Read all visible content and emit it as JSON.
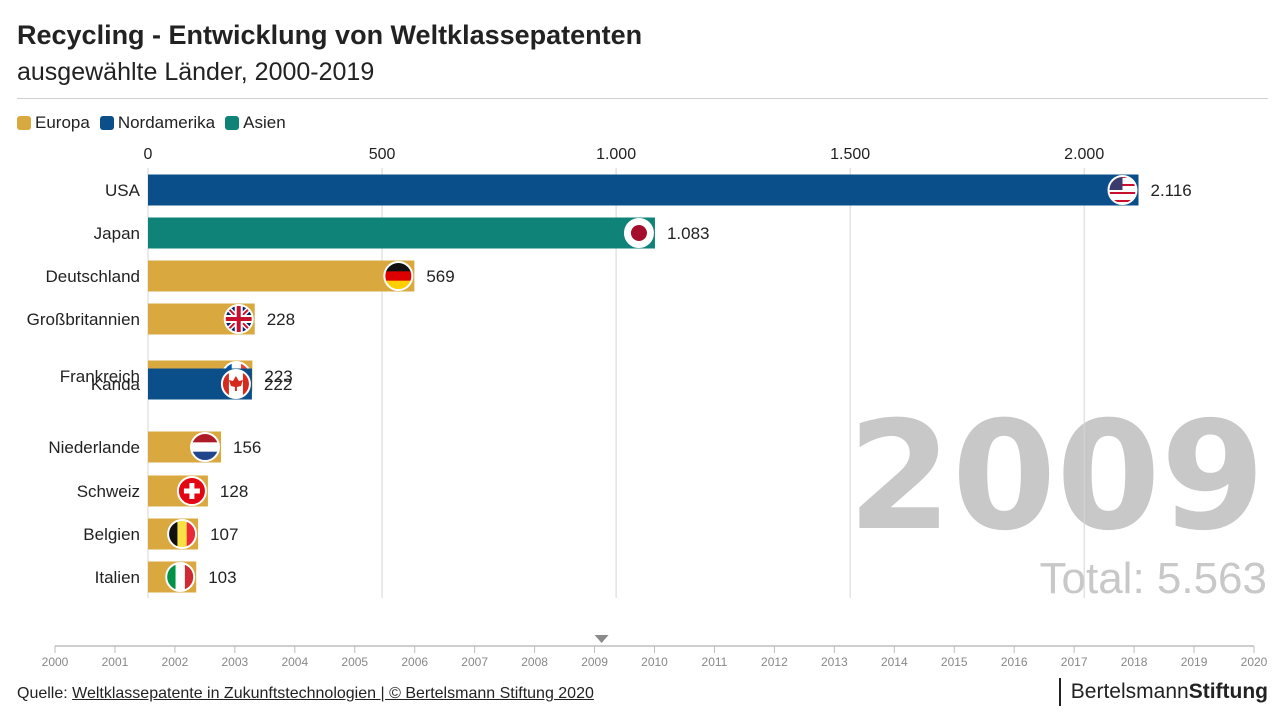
{
  "header": {
    "title": "Recycling - Entwicklung von Weltklassepatenten",
    "subtitle": "ausgewählte Länder, 2000-2019"
  },
  "legend": [
    {
      "label": "Europa",
      "color": "#d9a940"
    },
    {
      "label": "Nordamerika",
      "color": "#0a4f8a"
    },
    {
      "label": "Asien",
      "color": "#0f8378"
    }
  ],
  "colors": {
    "Europa": "#d9a940",
    "Nordamerika": "#0a4f8a",
    "Asien": "#0f8378",
    "big_year": "#c8c8c8",
    "grid": "#d6d6d6"
  },
  "chart_data": {
    "type": "bar",
    "orientation": "horizontal",
    "year": "2009",
    "total_label": "Total: 5.563",
    "xlim": [
      0,
      2100
    ],
    "xticks": [
      {
        "value": 0,
        "label": "0"
      },
      {
        "value": 500,
        "label": "500"
      },
      {
        "value": 1000,
        "label": "1.000"
      },
      {
        "value": 1500,
        "label": "1.500"
      },
      {
        "value": 2000,
        "label": "2.000"
      }
    ],
    "bars": [
      {
        "label": "USA",
        "value": 2116,
        "value_label": "2.116",
        "region": "Nordamerika",
        "flag": "us-flag-icon"
      },
      {
        "label": "Japan",
        "value": 1083,
        "value_label": "1.083",
        "region": "Asien",
        "flag": "jp-flag-icon"
      },
      {
        "label": "Deutschland",
        "value": 569,
        "value_label": "569",
        "region": "Europa",
        "flag": "de-flag-icon"
      },
      {
        "label": "Großbritannien",
        "value": 228,
        "value_label": "228",
        "region": "Europa",
        "flag": "gb-flag-icon"
      },
      {
        "label": "Frankreich",
        "value": 223,
        "value_label": "223",
        "region": "Europa",
        "flag": "fr-flag-icon"
      },
      {
        "label": "Kanda",
        "value": 222,
        "value_label": "222",
        "region": "Nordamerika",
        "flag": "ca-flag-icon"
      },
      {
        "label": "Niederlande",
        "value": 156,
        "value_label": "156",
        "region": "Europa",
        "flag": "nl-flag-icon"
      },
      {
        "label": "Schweiz",
        "value": 128,
        "value_label": "128",
        "region": "Europa",
        "flag": "ch-flag-icon"
      },
      {
        "label": "Belgien",
        "value": 107,
        "value_label": "107",
        "region": "Europa",
        "flag": "be-flag-icon"
      },
      {
        "label": "Italien",
        "value": 103,
        "value_label": "103",
        "region": "Europa",
        "flag": "it-flag-icon"
      }
    ],
    "timeline": {
      "years": [
        "2000",
        "2001",
        "2002",
        "2003",
        "2004",
        "2005",
        "2006",
        "2007",
        "2008",
        "2009",
        "2010",
        "2011",
        "2012",
        "2013",
        "2014",
        "2015",
        "2016",
        "2017",
        "2018",
        "2019",
        "2020"
      ],
      "current": "2009"
    }
  },
  "footer": {
    "source_prefix": "Quelle: ",
    "source_link": "Weltklassepatente in Zukunftstechnologien | © Bertelsmann Stiftung 2020",
    "brand_light": "Bertelsmann",
    "brand_bold": "Stiftung"
  }
}
